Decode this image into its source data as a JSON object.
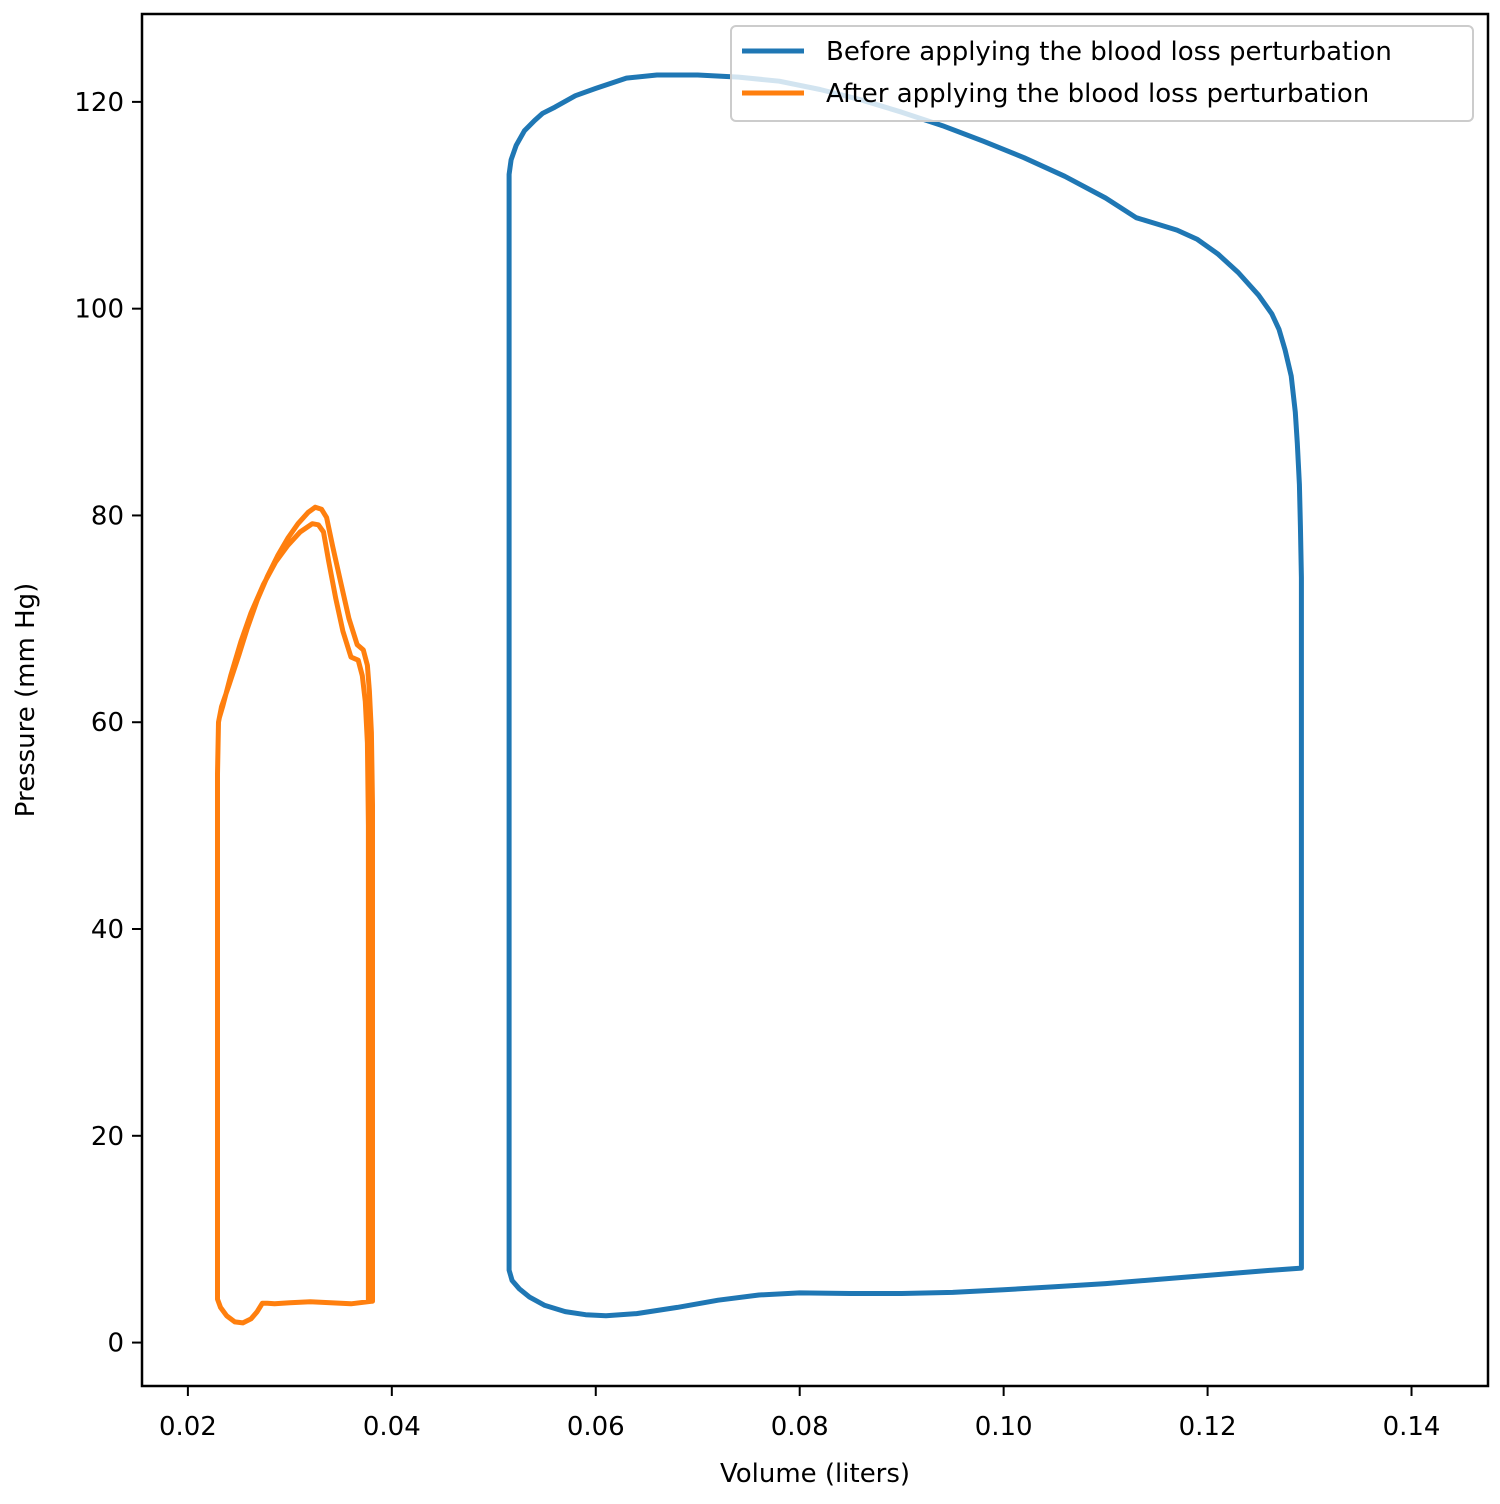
{
  "chart_data": {
    "type": "line",
    "title": "",
    "xlabel": "Volume (liters)",
    "ylabel": "Pressure (mm Hg)",
    "xlim": [
      0.0155,
      0.1475
    ],
    "ylim": [
      -4.2,
      128.5
    ],
    "xticks": [
      0.02,
      0.04,
      0.06,
      0.08,
      0.1,
      0.12,
      0.14
    ],
    "xtick_labels": [
      "0.02",
      "0.04",
      "0.06",
      "0.08",
      "0.10",
      "0.12",
      "0.14"
    ],
    "yticks": [
      0,
      20,
      40,
      60,
      80,
      100,
      120
    ],
    "ytick_labels": [
      "0",
      "20",
      "40",
      "60",
      "80",
      "100",
      "120"
    ],
    "grid": false,
    "legend_position": "top-right",
    "series": [
      {
        "name": "Before applying the blood loss perturbation",
        "color": "#1f77b4",
        "points": [
          [
            0.1292,
            7.2
          ],
          [
            0.1292,
            60
          ],
          [
            0.1292,
            74
          ],
          [
            0.1291,
            79
          ],
          [
            0.129,
            83
          ],
          [
            0.1288,
            87
          ],
          [
            0.1286,
            90
          ],
          [
            0.1282,
            93.5
          ],
          [
            0.1276,
            96
          ],
          [
            0.127,
            98
          ],
          [
            0.1263,
            99.5
          ],
          [
            0.125,
            101.3
          ],
          [
            0.123,
            103.5
          ],
          [
            0.121,
            105.3
          ],
          [
            0.119,
            106.7
          ],
          [
            0.117,
            107.6
          ],
          [
            0.115,
            108.2
          ],
          [
            0.113,
            108.8
          ],
          [
            0.11,
            110.7
          ],
          [
            0.106,
            112.8
          ],
          [
            0.102,
            114.6
          ],
          [
            0.098,
            116.2
          ],
          [
            0.094,
            117.7
          ],
          [
            0.09,
            119.0
          ],
          [
            0.086,
            120.2
          ],
          [
            0.082,
            121.2
          ],
          [
            0.078,
            122.0
          ],
          [
            0.074,
            122.4
          ],
          [
            0.07,
            122.6
          ],
          [
            0.066,
            122.6
          ],
          [
            0.063,
            122.3
          ],
          [
            0.06,
            121.3
          ],
          [
            0.058,
            120.6
          ],
          [
            0.056,
            119.5
          ],
          [
            0.0548,
            118.9
          ],
          [
            0.054,
            118.2
          ],
          [
            0.053,
            117.2
          ],
          [
            0.0522,
            115.8
          ],
          [
            0.0517,
            114.4
          ],
          [
            0.0515,
            113.0
          ],
          [
            0.0515,
            100
          ],
          [
            0.0515,
            60
          ],
          [
            0.0515,
            20
          ],
          [
            0.0515,
            7.0
          ],
          [
            0.0518,
            6.0
          ],
          [
            0.0525,
            5.2
          ],
          [
            0.0535,
            4.4
          ],
          [
            0.055,
            3.6
          ],
          [
            0.057,
            3.0
          ],
          [
            0.059,
            2.7
          ],
          [
            0.061,
            2.6
          ],
          [
            0.064,
            2.8
          ],
          [
            0.068,
            3.4
          ],
          [
            0.072,
            4.1
          ],
          [
            0.076,
            4.6
          ],
          [
            0.08,
            4.8
          ],
          [
            0.085,
            4.75
          ],
          [
            0.09,
            4.75
          ],
          [
            0.095,
            4.85
          ],
          [
            0.1,
            5.1
          ],
          [
            0.105,
            5.4
          ],
          [
            0.11,
            5.7
          ],
          [
            0.115,
            6.1
          ],
          [
            0.12,
            6.5
          ],
          [
            0.125,
            6.9
          ],
          [
            0.1292,
            7.2
          ]
        ]
      },
      {
        "name": "After applying the blood loss perturbation",
        "color": "#ff7f0e",
        "points": [
          [
            0.0381,
            4.0
          ],
          [
            0.0381,
            52
          ],
          [
            0.038,
            59
          ],
          [
            0.0378,
            63
          ],
          [
            0.0376,
            65.5
          ],
          [
            0.0372,
            67
          ],
          [
            0.0366,
            67.5
          ],
          [
            0.0358,
            70
          ],
          [
            0.035,
            73.5
          ],
          [
            0.0342,
            77
          ],
          [
            0.0336,
            79.8
          ],
          [
            0.0331,
            80.6
          ],
          [
            0.0325,
            80.8
          ],
          [
            0.0318,
            80.3
          ],
          [
            0.0308,
            79.2
          ],
          [
            0.0298,
            77.8
          ],
          [
            0.0288,
            76.1
          ],
          [
            0.0278,
            74.1
          ],
          [
            0.0268,
            71.8
          ],
          [
            0.0258,
            69.0
          ],
          [
            0.025,
            66.5
          ],
          [
            0.024,
            63.5
          ],
          [
            0.0233,
            61.5
          ],
          [
            0.023,
            60.0
          ],
          [
            0.0229,
            55
          ],
          [
            0.0229,
            30
          ],
          [
            0.0229,
            4.2
          ],
          [
            0.0232,
            3.4
          ],
          [
            0.0238,
            2.6
          ],
          [
            0.0246,
            2.0
          ],
          [
            0.0254,
            1.9
          ],
          [
            0.0262,
            2.3
          ],
          [
            0.0268,
            3.0
          ],
          [
            0.0273,
            3.8
          ],
          [
            0.0278,
            3.8
          ],
          [
            0.0285,
            3.75
          ],
          [
            0.03,
            3.85
          ],
          [
            0.032,
            3.95
          ],
          [
            0.034,
            3.85
          ],
          [
            0.036,
            3.75
          ],
          [
            0.0381,
            4.0
          ],
          [
            0.0377,
            4.0
          ],
          [
            0.0377,
            50
          ],
          [
            0.0376,
            58
          ],
          [
            0.0374,
            62
          ],
          [
            0.0371,
            64.5
          ],
          [
            0.0367,
            66
          ],
          [
            0.036,
            66.3
          ],
          [
            0.0352,
            68.8
          ],
          [
            0.0345,
            72
          ],
          [
            0.0338,
            75.6
          ],
          [
            0.0333,
            78.4
          ],
          [
            0.0328,
            79.1
          ],
          [
            0.0322,
            79.2
          ],
          [
            0.031,
            78.4
          ],
          [
            0.0298,
            77.1
          ],
          [
            0.0286,
            75.5
          ],
          [
            0.0274,
            73.3
          ],
          [
            0.0262,
            70.6
          ],
          [
            0.0252,
            67.8
          ],
          [
            0.0242,
            64.5
          ],
          [
            0.0234,
            61.5
          ],
          [
            0.0231,
            60.5
          ]
        ]
      }
    ]
  }
}
